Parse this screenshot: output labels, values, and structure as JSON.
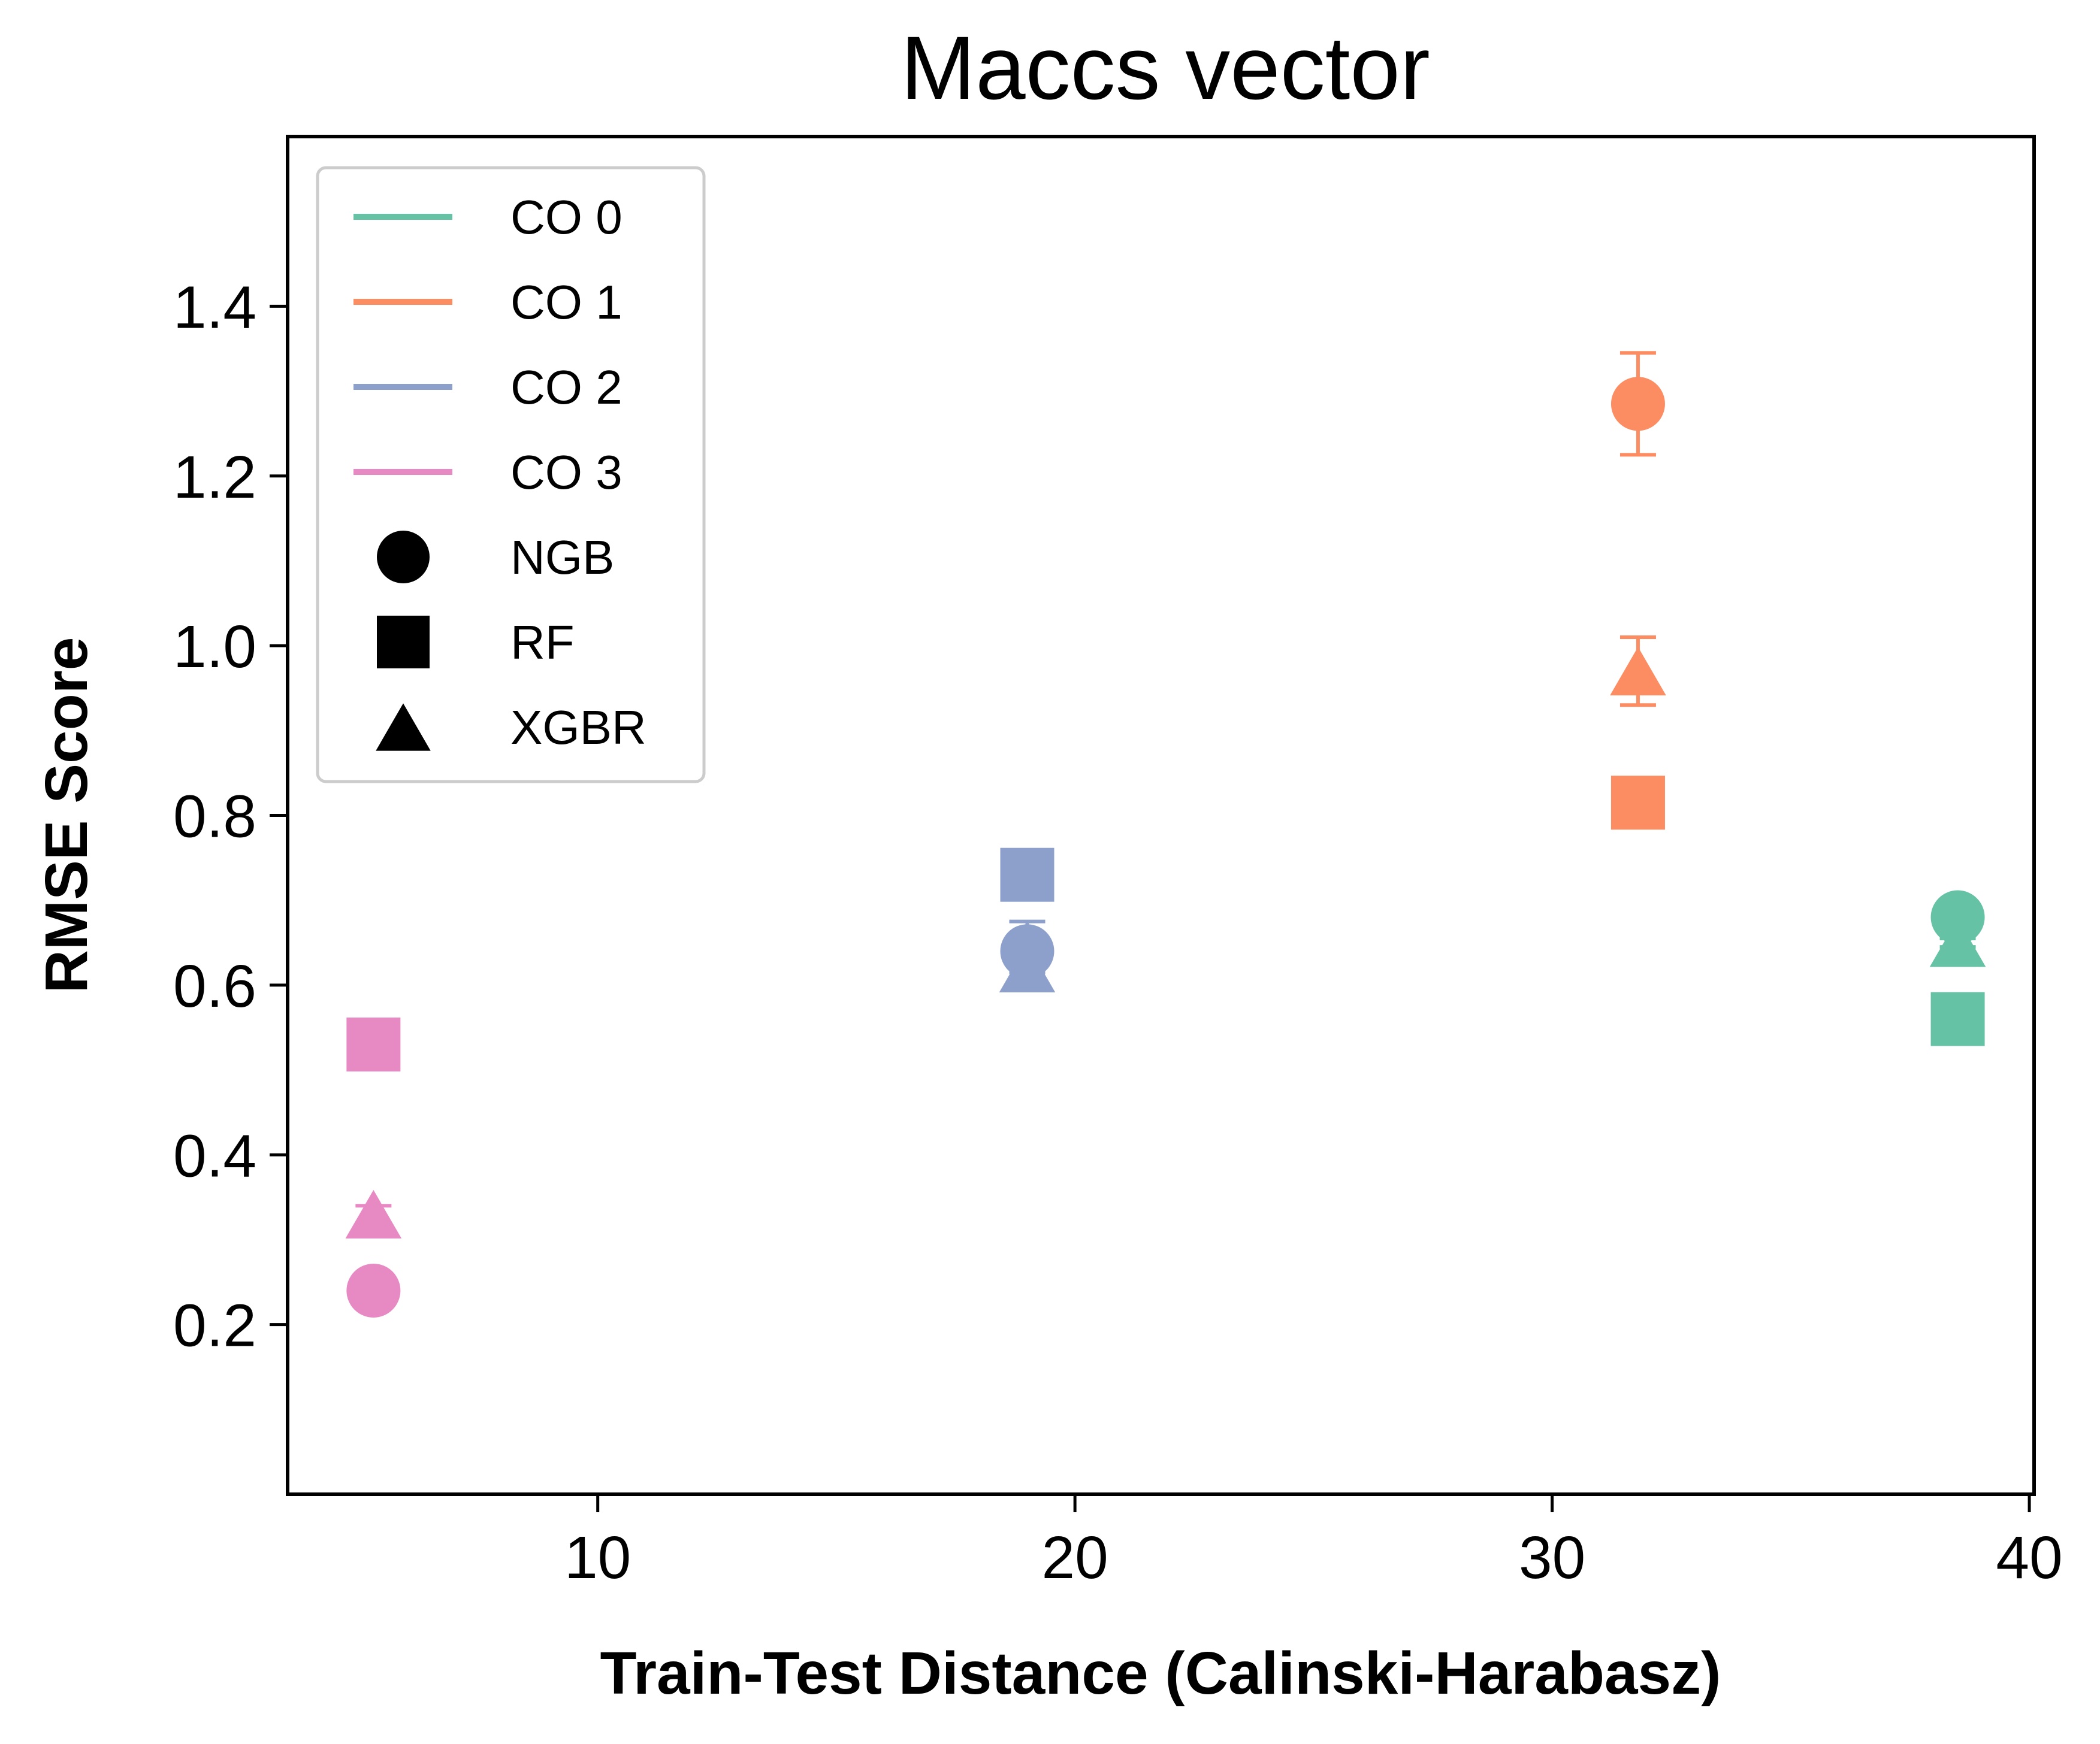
{
  "chart_data": {
    "type": "scatter",
    "title": "Maccs vector",
    "xlabel": "Train-Test Distance (Calinski-Harabasz)",
    "ylabel": "RMSE Score",
    "xlim": [
      3.5,
      40.1
    ],
    "ylim": [
      0.0,
      1.6
    ],
    "xticks": [
      10,
      20,
      30,
      40
    ],
    "yticks": [
      0.2,
      0.4,
      0.6,
      0.8,
      1.0,
      1.2,
      1.4
    ],
    "ytick_labels": [
      "0.2",
      "0.4",
      "0.6",
      "0.8",
      "1.0",
      "1.2",
      "1.4"
    ],
    "legend_position": "top-left",
    "grid": false,
    "groups": [
      {
        "name": "CO 0",
        "color": "#66c2a5"
      },
      {
        "name": "CO 1",
        "color": "#fc8d62"
      },
      {
        "name": "CO 2",
        "color": "#8da0cb"
      },
      {
        "name": "CO 3",
        "color": "#e78ac3"
      }
    ],
    "models": [
      {
        "name": "NGB",
        "marker": "circle"
      },
      {
        "name": "RF",
        "marker": "square"
      },
      {
        "name": "XGBR",
        "marker": "triangle"
      }
    ],
    "points": [
      {
        "group": "CO 3",
        "model": "NGB",
        "x": 5.3,
        "y": 0.24,
        "err": 0.01
      },
      {
        "group": "CO 3",
        "model": "RF",
        "x": 5.3,
        "y": 0.53,
        "err": 0.0
      },
      {
        "group": "CO 3",
        "model": "XGBR",
        "x": 5.3,
        "y": 0.33,
        "err": 0.01
      },
      {
        "group": "CO 2",
        "model": "NGB",
        "x": 19.0,
        "y": 0.64,
        "err": 0.035
      },
      {
        "group": "CO 2",
        "model": "RF",
        "x": 19.0,
        "y": 0.73,
        "err": 0.0
      },
      {
        "group": "CO 2",
        "model": "XGBR",
        "x": 19.0,
        "y": 0.62,
        "err": 0.005
      },
      {
        "group": "CO 1",
        "model": "NGB",
        "x": 31.8,
        "y": 1.285,
        "err": 0.06
      },
      {
        "group": "CO 1",
        "model": "RF",
        "x": 31.8,
        "y": 0.815,
        "err": 0.0
      },
      {
        "group": "CO 1",
        "model": "XGBR",
        "x": 31.8,
        "y": 0.97,
        "err": 0.04
      },
      {
        "group": "CO 0",
        "model": "NGB",
        "x": 38.5,
        "y": 0.68,
        "err": 0.005
      },
      {
        "group": "CO 0",
        "model": "RF",
        "x": 38.5,
        "y": 0.56,
        "err": 0.0
      },
      {
        "group": "CO 0",
        "model": "XGBR",
        "x": 38.5,
        "y": 0.65,
        "err": 0.005
      }
    ]
  }
}
